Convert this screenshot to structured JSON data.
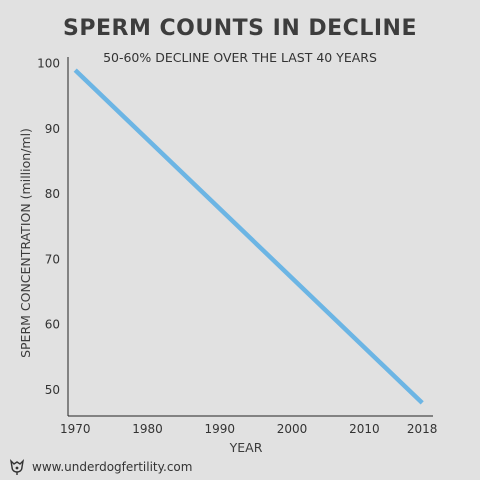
{
  "chart_data": {
    "type": "line",
    "title": "SPERM COUNTS IN DECLINE",
    "subtitle": "50-60% DECLINE OVER THE LAST 40 YEARS",
    "xlabel": "YEAR",
    "ylabel": "SPERM CONCENTRATION (million/ml)",
    "x_ticks": [
      1970,
      1980,
      1990,
      2000,
      2010,
      2018
    ],
    "y_ticks": [
      50,
      60,
      70,
      80,
      90,
      100
    ],
    "xlim": [
      1969,
      2019.5
    ],
    "ylim": [
      46,
      101
    ],
    "grid": false,
    "line_color": "#6cb5e4",
    "series": [
      {
        "x": [
          1970,
          2018
        ],
        "y": [
          99,
          48
        ]
      }
    ]
  },
  "footer": {
    "website": "www.underdogfertility.com",
    "logo_icon": "underdog-logo-icon"
  }
}
